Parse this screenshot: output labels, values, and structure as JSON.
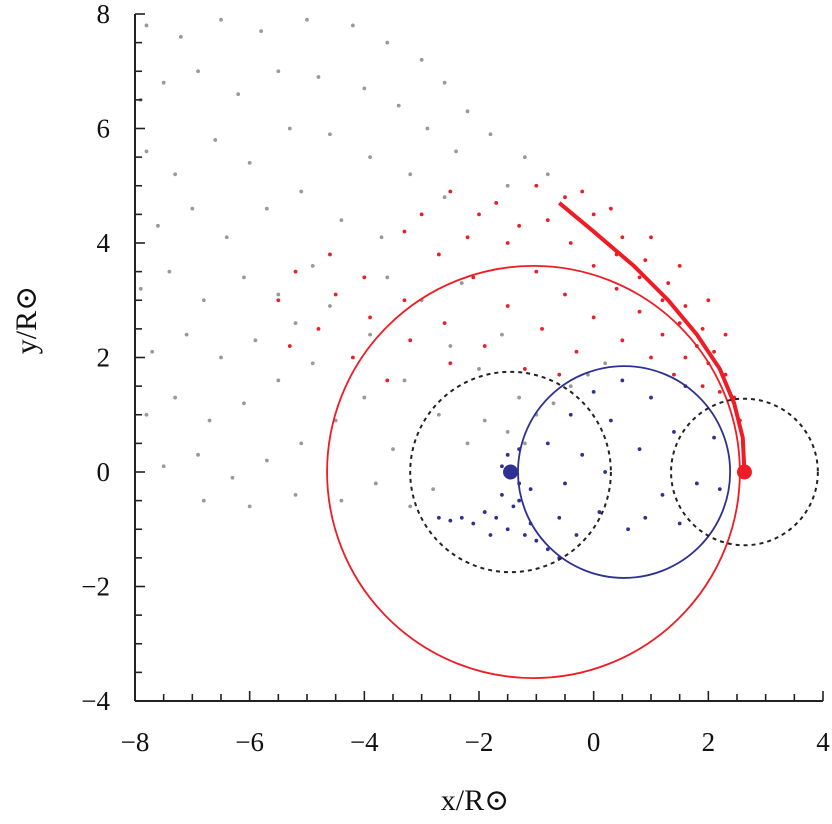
{
  "chart_data": {
    "type": "scatter",
    "xlabel": "x/R⊙",
    "ylabel": "y/R⊙",
    "xlim": [
      -8,
      4
    ],
    "ylim": [
      -4,
      8
    ],
    "xticks": [
      "−8",
      "−6",
      "−4",
      "−2",
      "0",
      "2",
      "4"
    ],
    "yticks": [
      "−4",
      "−2",
      "0",
      "2",
      "4",
      "6",
      "8"
    ],
    "xtick_values": [
      -8,
      -6,
      -4,
      -2,
      0,
      2,
      4
    ],
    "ytick_values": [
      -4,
      -2,
      0,
      2,
      4,
      6,
      8
    ],
    "minor_tick_step": 0.5,
    "grid": false,
    "colors": {
      "gray": "#999999",
      "red": "#ee1c24",
      "blue": "#2e3192",
      "black": "#222222"
    },
    "series": [
      {
        "color": "#999999",
        "points": [
          [
            -7.8,
            7.8
          ],
          [
            -7.2,
            7.6
          ],
          [
            -6.5,
            7.9
          ],
          [
            -5.8,
            7.7
          ],
          [
            -5,
            7.9
          ],
          [
            -4.2,
            7.8
          ],
          [
            -3.6,
            7.5
          ],
          [
            -3,
            7.2
          ],
          [
            -2.6,
            6.8
          ],
          [
            -2.2,
            6.3
          ],
          [
            -1.8,
            5.9
          ],
          [
            -1.2,
            5.5
          ],
          [
            -0.8,
            5.2
          ],
          [
            -7.9,
            6.5
          ],
          [
            -7.5,
            6.8
          ],
          [
            -6.9,
            7
          ],
          [
            -6.2,
            6.6
          ],
          [
            -5.5,
            7
          ],
          [
            -4.8,
            6.9
          ],
          [
            -4,
            6.7
          ],
          [
            -3.4,
            6.4
          ],
          [
            -2.9,
            6
          ],
          [
            -2.4,
            5.6
          ],
          [
            -1.5,
            5
          ],
          [
            -7.8,
            5.6
          ],
          [
            -7.3,
            5.2
          ],
          [
            -6.6,
            5.8
          ],
          [
            -6,
            5.4
          ],
          [
            -5.3,
            6
          ],
          [
            -4.6,
            5.9
          ],
          [
            -3.9,
            5.5
          ],
          [
            -3.2,
            5.2
          ],
          [
            -2.6,
            4.8
          ],
          [
            -7.6,
            4.3
          ],
          [
            -7,
            4.6
          ],
          [
            -6.4,
            4.1
          ],
          [
            -5.7,
            4.6
          ],
          [
            -5.1,
            4.9
          ],
          [
            -4.4,
            4.4
          ],
          [
            -3.7,
            4.1
          ],
          [
            -7.9,
            3.2
          ],
          [
            -7.4,
            3.5
          ],
          [
            -6.8,
            3
          ],
          [
            -6.1,
            3.4
          ],
          [
            -5.5,
            3.1
          ],
          [
            -4.9,
            3.6
          ],
          [
            -7.7,
            2.1
          ],
          [
            -7.1,
            2.4
          ],
          [
            -6.5,
            2
          ],
          [
            -5.9,
            2.3
          ],
          [
            -5.2,
            2.6
          ],
          [
            -4.6,
            2.9
          ],
          [
            -7.8,
            1
          ],
          [
            -7.3,
            1.3
          ],
          [
            -6.7,
            0.9
          ],
          [
            -6.1,
            1.2
          ],
          [
            -5.5,
            1.6
          ],
          [
            -4.9,
            1.9
          ],
          [
            -7.5,
            0.1
          ],
          [
            -6.9,
            0.3
          ],
          [
            -6.3,
            -0.1
          ],
          [
            -5.7,
            0.2
          ],
          [
            -5.1,
            0.5
          ],
          [
            -4.5,
            0.9
          ],
          [
            -6.8,
            -0.5
          ],
          [
            -6,
            -0.6
          ],
          [
            -5.2,
            -0.4
          ],
          [
            -4.4,
            -0.5
          ],
          [
            -3.8,
            -0.2
          ],
          [
            -3.2,
            -0.6
          ],
          [
            -2.8,
            -0.3
          ],
          [
            -3.5,
            0.4
          ],
          [
            -4,
            1.3
          ],
          [
            -3.3,
            1.6
          ],
          [
            -2.7,
            1
          ],
          [
            -2.2,
            0.5
          ],
          [
            -1.9,
            0.9
          ],
          [
            -1.5,
            0.7
          ],
          [
            -1.2,
            0.5
          ],
          [
            -1.0,
            1.0
          ],
          [
            -0.7,
            1.2
          ],
          [
            -0.4,
            1.5
          ],
          [
            -0.1,
            1.7
          ],
          [
            0.2,
            1.9
          ],
          [
            -1.3,
            1.3
          ],
          [
            -2.5,
            2.2
          ],
          [
            -3.9,
            2.4
          ],
          [
            -2,
            1.8
          ],
          [
            -1.6,
            2.4
          ],
          [
            -3,
            3
          ],
          [
            -2.3,
            3.3
          ],
          [
            -3.6,
            3.4
          ]
        ]
      },
      {
        "color": "#ee1c24",
        "points": [
          [
            2.62,
            0.2
          ],
          [
            2.6,
            0.5
          ],
          [
            2.55,
            0.9
          ],
          [
            2.45,
            1.3
          ],
          [
            2.3,
            1.7
          ],
          [
            2.1,
            2.1
          ],
          [
            1.9,
            2.5
          ],
          [
            1.6,
            2.9
          ],
          [
            1.3,
            3.3
          ],
          [
            0.9,
            3.7
          ],
          [
            0.5,
            4.1
          ],
          [
            0,
            4.5
          ],
          [
            -0.5,
            4.8
          ],
          [
            -1,
            5
          ],
          [
            2.0,
            1.9
          ],
          [
            1.8,
            2.2
          ],
          [
            1.5,
            2.6
          ],
          [
            1.2,
            3.0
          ],
          [
            0.8,
            3.4
          ],
          [
            0.4,
            3.8
          ],
          [
            1.6,
            2.0
          ],
          [
            1.2,
            2.4
          ],
          [
            0.8,
            2.8
          ],
          [
            0.4,
            3.2
          ],
          [
            0,
            3.6
          ],
          [
            -0.4,
            4
          ],
          [
            -0.8,
            4.4
          ],
          [
            1,
            2.0
          ],
          [
            0.5,
            2.3
          ],
          [
            0,
            2.7
          ],
          [
            -0.5,
            3.1
          ],
          [
            -1,
            3.5
          ],
          [
            -1.5,
            4
          ],
          [
            -2,
            4.5
          ],
          [
            -0.3,
            2.1
          ],
          [
            -0.9,
            2.5
          ],
          [
            -1.5,
            2.9
          ],
          [
            -2.1,
            3.4
          ],
          [
            -2.7,
            3.8
          ],
          [
            -3.3,
            4.2
          ],
          [
            -1.2,
            1.8
          ],
          [
            -1.9,
            2.2
          ],
          [
            -2.6,
            2.6
          ],
          [
            -3.3,
            3
          ],
          [
            -4,
            3.4
          ],
          [
            -4.6,
            3.8
          ],
          [
            -2.5,
            1.9
          ],
          [
            -3.2,
            2.3
          ],
          [
            -3.9,
            2.7
          ],
          [
            -4.5,
            3.1
          ],
          [
            -5.2,
            3.5
          ],
          [
            -5.5,
            3
          ],
          [
            -4.2,
            2
          ],
          [
            -3.6,
            1.6
          ],
          [
            -1.7,
            4.7
          ],
          [
            -2.5,
            4.9
          ],
          [
            -3,
            4.5
          ],
          [
            -2.2,
            4.1
          ],
          [
            -1.3,
            4.3
          ],
          [
            -0.2,
            4.9
          ],
          [
            0.3,
            4.6
          ],
          [
            1.0,
            4.1
          ],
          [
            1.5,
            3.6
          ],
          [
            2.0,
            3.0
          ],
          [
            2.3,
            2.4
          ],
          [
            2.2,
            1.4
          ],
          [
            1.9,
            1.5
          ],
          [
            1.4,
            1.7
          ],
          [
            -0.6,
            1.7
          ],
          [
            -4.8,
            2.5
          ],
          [
            -5.3,
            2.2
          ]
        ]
      },
      {
        "color": "#2e3192",
        "points": [
          [
            -1.45,
            0
          ],
          [
            -1.5,
            0.3
          ],
          [
            -1.3,
            -0.2
          ],
          [
            -1.6,
            -0.4
          ],
          [
            -1.4,
            -0.6
          ],
          [
            -1.7,
            -0.8
          ],
          [
            -1.9,
            -0.7
          ],
          [
            -2.1,
            -0.9
          ],
          [
            -2.3,
            -0.8
          ],
          [
            -2.5,
            -0.85
          ],
          [
            -2.7,
            -0.8
          ],
          [
            -1.5,
            -1.0
          ],
          [
            -1.2,
            -1.1
          ],
          [
            -1.0,
            -1.2
          ],
          [
            -0.8,
            -1.35
          ],
          [
            -0.6,
            -1.5
          ],
          [
            -1.1,
            -0.9
          ],
          [
            -1.8,
            -1.1
          ],
          [
            -1.3,
            -0.5
          ],
          [
            -1.1,
            -0.3
          ],
          [
            -1.6,
            0.1
          ],
          [
            -1.3,
            0.4
          ],
          [
            -0.8,
            0.5
          ],
          [
            -0.5,
            -0.2
          ],
          [
            -0.2,
            0.3
          ],
          [
            0.1,
            -0.7
          ],
          [
            0.3,
            0.9
          ],
          [
            0.6,
            -1.0
          ],
          [
            0.8,
            0.4
          ],
          [
            1.0,
            1.3
          ],
          [
            1.2,
            -0.4
          ],
          [
            1.4,
            0.7
          ],
          [
            1.6,
            1.5
          ],
          [
            1.8,
            -0.2
          ],
          [
            2.1,
            0.6
          ],
          [
            0.5,
            1.6
          ],
          [
            -0.4,
            1.0
          ],
          [
            0.0,
            1.4
          ],
          [
            -0.3,
            -1.1
          ],
          [
            0.9,
            -0.8
          ],
          [
            1.5,
            -0.9
          ],
          [
            2.2,
            -0.3
          ],
          [
            -0.6,
            -0.8
          ],
          [
            0.2,
            0.0
          ]
        ]
      }
    ],
    "circles": [
      {
        "cx": -1.05,
        "cy": 0,
        "r": 3.6,
        "color": "#ee1c24",
        "style": "solid"
      },
      {
        "cx": 0.53,
        "cy": 0,
        "r": 1.85,
        "color": "#2e3192",
        "style": "solid"
      },
      {
        "cx": -1.45,
        "cy": 0,
        "r": 1.75,
        "color": "#222222",
        "style": "dotted"
      },
      {
        "cx": 2.63,
        "cy": 0,
        "r": 1.28,
        "color": "#222222",
        "style": "dotted"
      }
    ],
    "markers": [
      {
        "x": -1.45,
        "y": 0,
        "color": "#2e3192"
      },
      {
        "x": 2.63,
        "y": 0,
        "color": "#ee1c24"
      }
    ],
    "stream": {
      "color": "#ee1c24",
      "points": [
        [
          2.63,
          0
        ],
        [
          2.6,
          0.6
        ],
        [
          2.45,
          1.2
        ],
        [
          2.2,
          1.8
        ],
        [
          1.8,
          2.4
        ],
        [
          1.3,
          3.0
        ],
        [
          0.7,
          3.6
        ],
        [
          0,
          4.2
        ],
        [
          -0.6,
          4.7
        ]
      ]
    }
  }
}
